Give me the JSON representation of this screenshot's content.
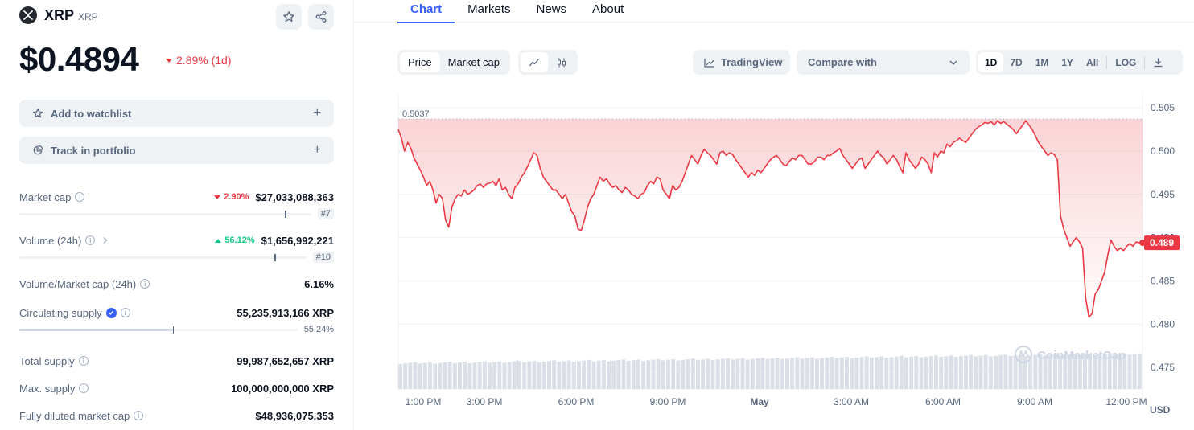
{
  "coin": {
    "name": "XRP",
    "symbol": "XRP",
    "price": "$0.4894",
    "change": "2.89% (1d)"
  },
  "actions": {
    "watchlist": "Add to watchlist",
    "portfolio": "Track in portfolio",
    "plus": "+"
  },
  "stats": {
    "market_cap": {
      "label": "Market cap",
      "change": "2.90%",
      "value": "$27,033,088,363",
      "rank": "#7",
      "bar_fraction": 0.91
    },
    "volume": {
      "label": "Volume (24h)",
      "change": "56.12%",
      "value": "$1,656,992,221",
      "rank": "#10",
      "bar_fraction": 0.89
    },
    "vol_mcap": {
      "label": "Volume/Market cap (24h)",
      "value": "6.16%"
    },
    "circulating": {
      "label": "Circulating supply",
      "value": "55,235,913,166 XRP",
      "percent": "55.24%",
      "bar_fraction": 0.5524
    },
    "total_supply": {
      "label": "Total supply",
      "value": "99,987,652,657 XRP"
    },
    "max_supply": {
      "label": "Max. supply",
      "value": "100,000,000,000 XRP"
    },
    "fdv": {
      "label": "Fully diluted market cap",
      "value": "$48,936,075,353"
    }
  },
  "tabs": [
    "Chart",
    "Markets",
    "News",
    "About"
  ],
  "toolbar": {
    "price_mode": [
      "Price",
      "Market cap"
    ],
    "tradingview": "TradingView",
    "compare": "Compare with",
    "ranges": [
      "1D",
      "7D",
      "1M",
      "1Y",
      "All"
    ],
    "log": "LOG"
  },
  "colors": {
    "accent": "#3861fb",
    "negative": "#ea3943",
    "positive": "#16c784"
  },
  "chart_data": {
    "type": "line",
    "xlabels": [
      "1:00 PM",
      "3:00 PM",
      "6:00 PM",
      "9:00 PM",
      "May",
      "3:00 AM",
      "6:00 AM",
      "9:00 AM",
      "12:00 PM"
    ],
    "yticks": [
      "0.505",
      "0.500",
      "0.495",
      "0.490",
      "0.485",
      "0.480",
      "0.475"
    ],
    "ylim": [
      0.4725,
      0.5065
    ],
    "currency_label": "USD",
    "open_label": "0.5037",
    "open_value": 0.5037,
    "last_label": "0.489",
    "watermark": "CoinMarketCap",
    "series": [
      {
        "values": [
          0.5025,
          0.5015,
          0.5,
          0.501,
          0.5003,
          0.4992,
          0.4985,
          0.4978,
          0.497,
          0.496,
          0.4965,
          0.4955,
          0.494,
          0.495,
          0.4945,
          0.492,
          0.4912,
          0.4935,
          0.4945,
          0.495,
          0.4948,
          0.4955,
          0.495,
          0.4952,
          0.4955,
          0.496,
          0.4962,
          0.4958,
          0.4962,
          0.4963,
          0.4965,
          0.496,
          0.4968,
          0.4955,
          0.4958,
          0.495,
          0.4945,
          0.4958,
          0.4962,
          0.497,
          0.4975,
          0.4982,
          0.499,
          0.4998,
          0.4995,
          0.498,
          0.497,
          0.4965,
          0.496,
          0.4955,
          0.4955,
          0.495,
          0.4945,
          0.495,
          0.494,
          0.493,
          0.4925,
          0.491,
          0.4908,
          0.492,
          0.4935,
          0.4945,
          0.495,
          0.496,
          0.497,
          0.4965,
          0.4968,
          0.4962,
          0.4958,
          0.496,
          0.4955,
          0.4952,
          0.4958,
          0.4955,
          0.495,
          0.4948,
          0.4945,
          0.495,
          0.4952,
          0.496,
          0.4965,
          0.4962,
          0.497,
          0.4968,
          0.4955,
          0.495,
          0.4945,
          0.496,
          0.4955,
          0.4958,
          0.4965,
          0.4975,
          0.4985,
          0.4995,
          0.499,
          0.4985,
          0.4995,
          0.5002,
          0.4998,
          0.4995,
          0.499,
          0.4985,
          0.4998,
          0.5,
          0.4995,
          0.4998,
          0.4996,
          0.499,
          0.4985,
          0.498,
          0.4975,
          0.497,
          0.4975,
          0.4972,
          0.4978,
          0.4975,
          0.498,
          0.4985,
          0.499,
          0.4993,
          0.4995,
          0.499,
          0.4985,
          0.4983,
          0.4988,
          0.4992,
          0.499,
          0.4995,
          0.4995,
          0.499,
          0.4985,
          0.4985,
          0.4988,
          0.4993,
          0.4993,
          0.499,
          0.4995,
          0.4995,
          0.4998,
          0.5,
          0.5003,
          0.4995,
          0.499,
          0.4985,
          0.498,
          0.4985,
          0.499,
          0.4992,
          0.498,
          0.4985,
          0.499,
          0.4995,
          0.5,
          0.4995,
          0.4992,
          0.4985,
          0.499,
          0.4995,
          0.499,
          0.4982,
          0.4975,
          0.4998,
          0.499,
          0.4985,
          0.498,
          0.4985,
          0.4993,
          0.499,
          0.4985,
          0.4975,
          0.4998,
          0.4993,
          0.5,
          0.4998,
          0.5008,
          0.5005,
          0.501,
          0.5012,
          0.5015,
          0.5012,
          0.501,
          0.5015,
          0.502,
          0.5025,
          0.5028,
          0.503,
          0.5033,
          0.5032,
          0.5034,
          0.503,
          0.5035,
          0.5032,
          0.5034,
          0.5031,
          0.5028,
          0.5025,
          0.502,
          0.5025,
          0.503,
          0.5035,
          0.503,
          0.5025,
          0.5018,
          0.501,
          0.5005,
          0.5,
          0.4995,
          0.4998,
          0.4996,
          0.499,
          0.4925,
          0.491,
          0.49,
          0.489,
          0.4895,
          0.49,
          0.4895,
          0.4888,
          0.483,
          0.4808,
          0.4812,
          0.4835,
          0.484,
          0.485,
          0.486,
          0.488,
          0.4897,
          0.489,
          0.4885,
          0.4888,
          0.4885,
          0.489,
          0.4893,
          0.489,
          0.4895,
          0.4894,
          0.4894
        ]
      }
    ]
  }
}
